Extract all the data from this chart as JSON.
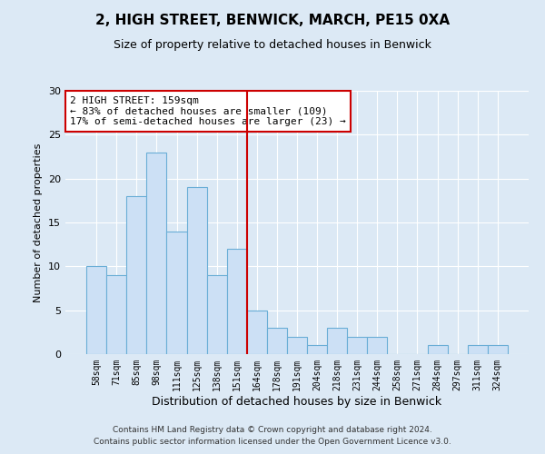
{
  "title": "2, HIGH STREET, BENWICK, MARCH, PE15 0XA",
  "subtitle": "Size of property relative to detached houses in Benwick",
  "xlabel": "Distribution of detached houses by size in Benwick",
  "ylabel": "Number of detached properties",
  "bar_labels": [
    "58sqm",
    "71sqm",
    "85sqm",
    "98sqm",
    "111sqm",
    "125sqm",
    "138sqm",
    "151sqm",
    "164sqm",
    "178sqm",
    "191sqm",
    "204sqm",
    "218sqm",
    "231sqm",
    "244sqm",
    "258sqm",
    "271sqm",
    "284sqm",
    "297sqm",
    "311sqm",
    "324sqm"
  ],
  "bar_heights": [
    10,
    9,
    18,
    23,
    14,
    19,
    9,
    12,
    5,
    3,
    2,
    1,
    3,
    2,
    2,
    0,
    0,
    1,
    0,
    1,
    1
  ],
  "bar_color": "#cce0f5",
  "bar_edge_color": "#6aaed6",
  "vline_index": 8,
  "vline_color": "#cc0000",
  "annotation_title": "2 HIGH STREET: 159sqm",
  "annotation_line1": "← 83% of detached houses are smaller (109)",
  "annotation_line2": "17% of semi-detached houses are larger (23) →",
  "annotation_box_edgecolor": "#cc0000",
  "ylim": [
    0,
    30
  ],
  "yticks": [
    0,
    5,
    10,
    15,
    20,
    25,
    30
  ],
  "footer1": "Contains HM Land Registry data © Crown copyright and database right 2024.",
  "footer2": "Contains public sector information licensed under the Open Government Licence v3.0.",
  "bg_color": "#dce9f5",
  "plot_bg_color": "#dce9f5",
  "grid_color": "#ffffff",
  "title_fontsize": 11,
  "subtitle_fontsize": 9
}
